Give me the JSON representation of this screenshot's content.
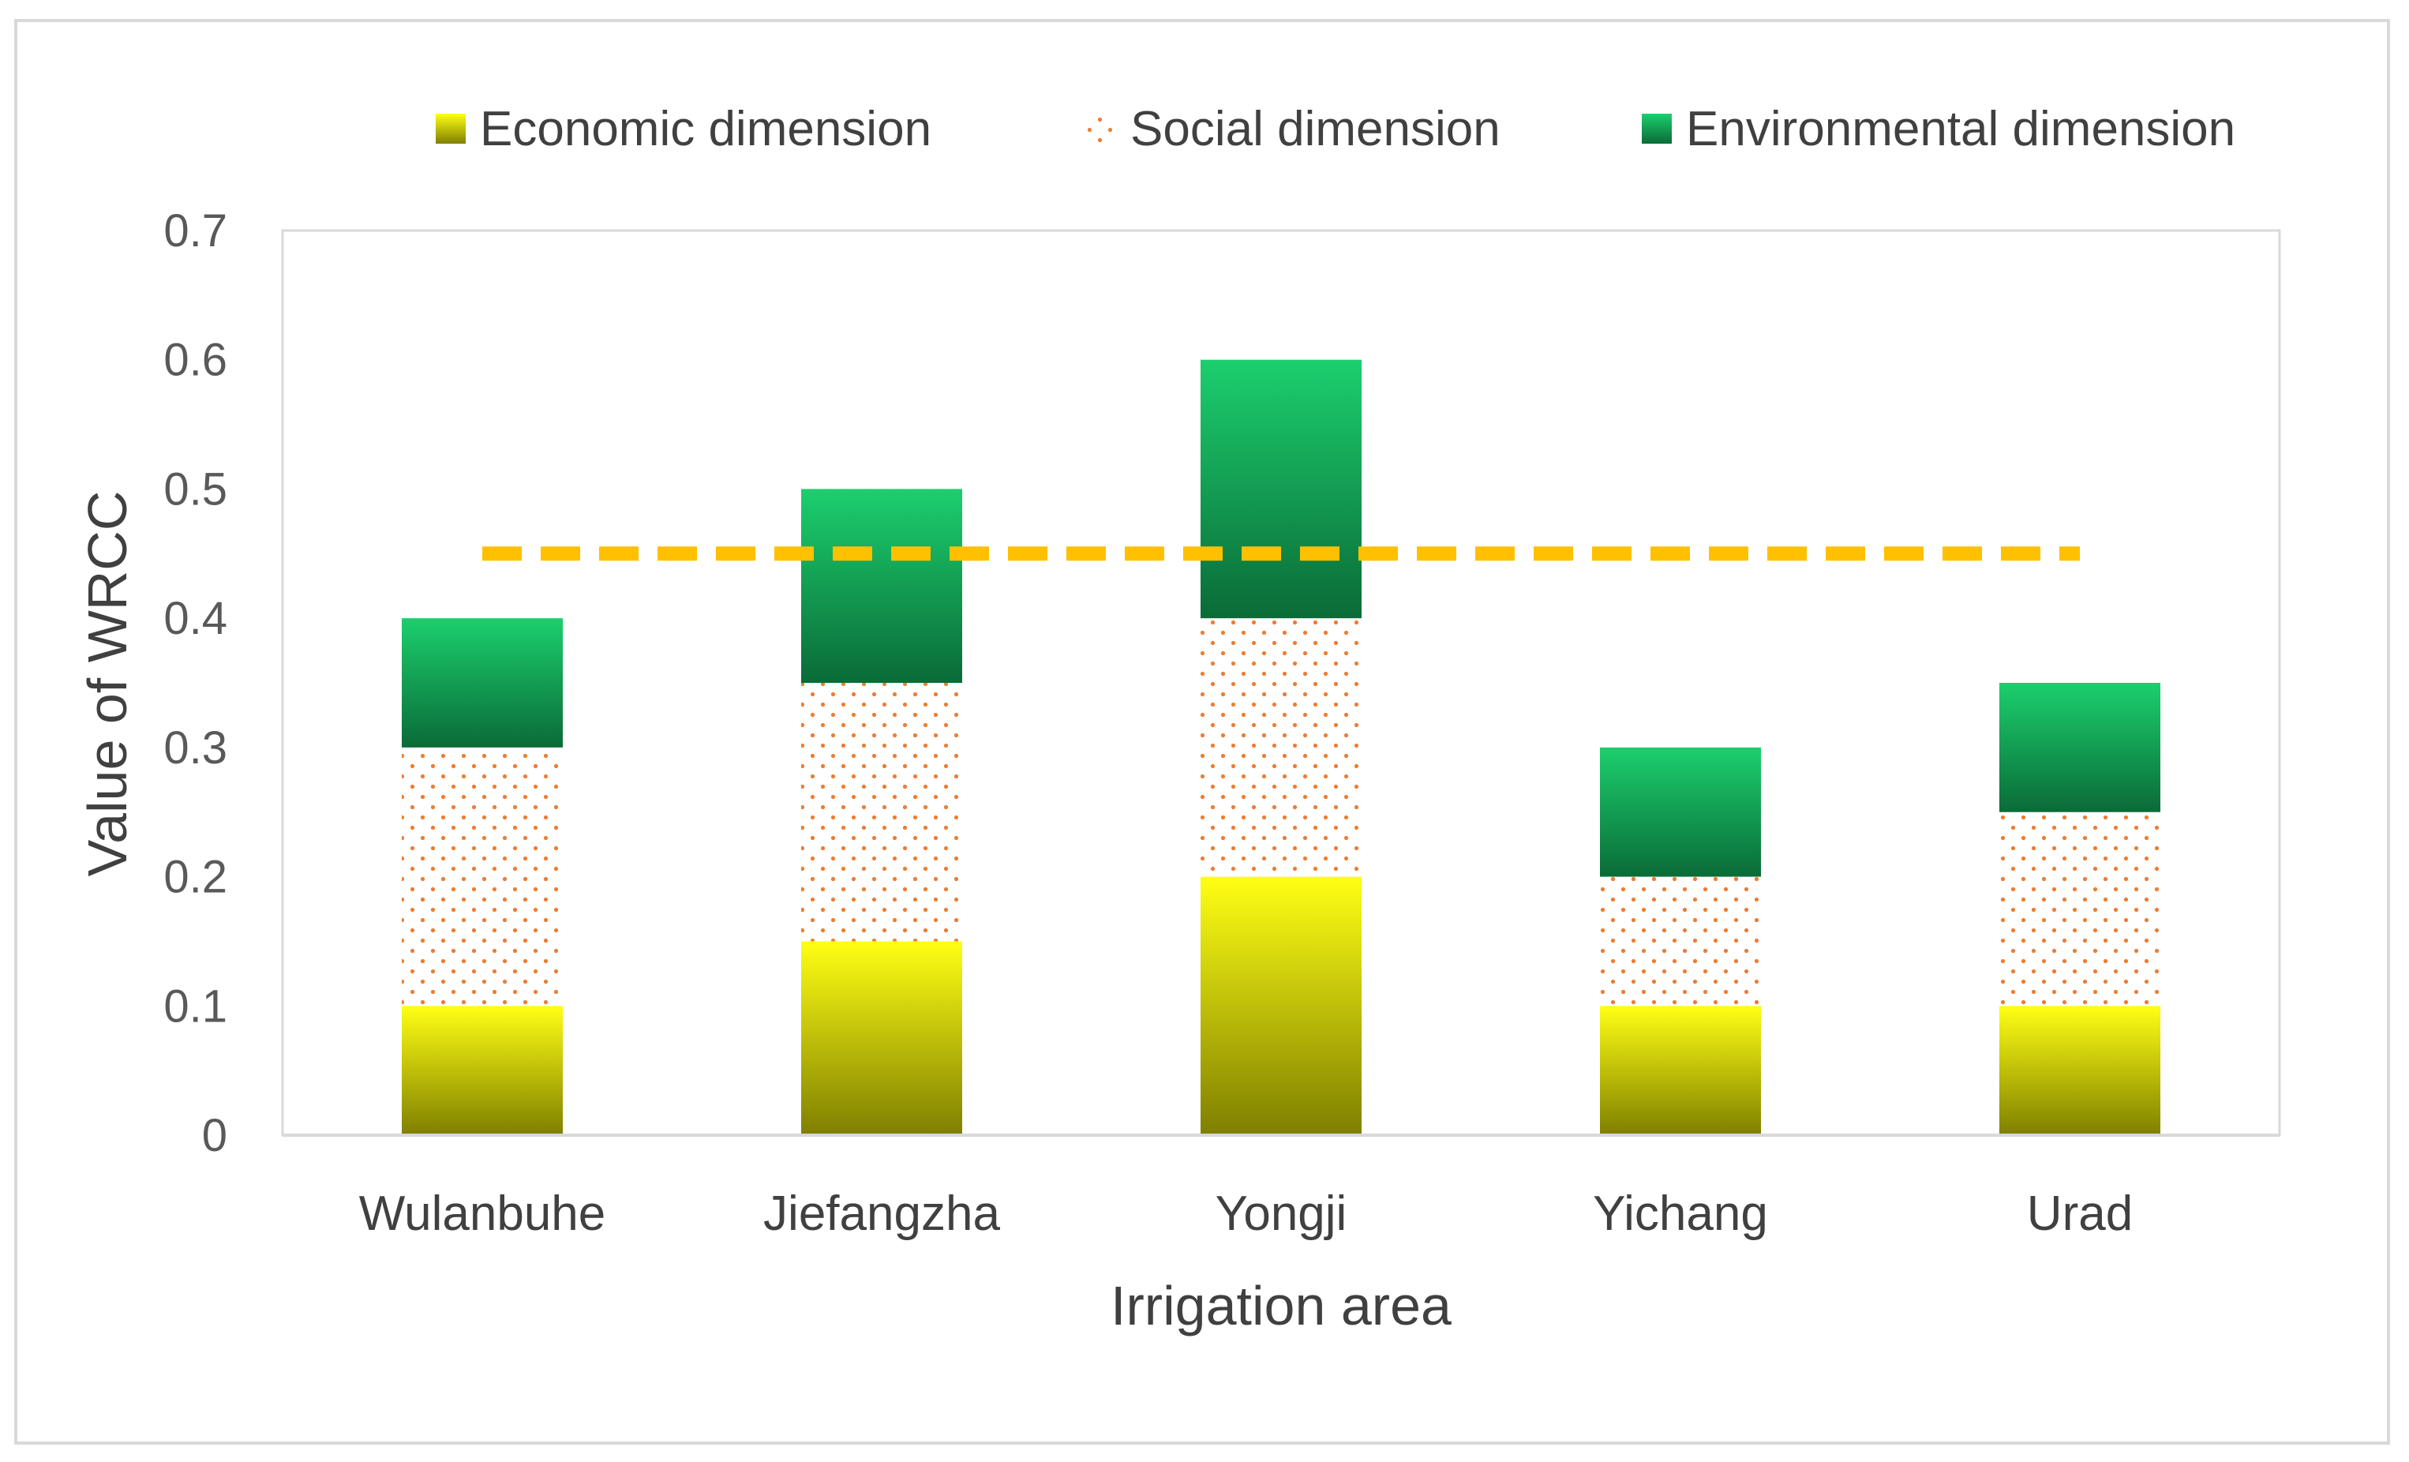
{
  "chart_data": {
    "type": "bar",
    "stacked": true,
    "title": "",
    "xlabel": "Irrigation area",
    "ylabel": "Value of WRCC",
    "ylim": [
      0,
      0.7
    ],
    "yticks": [
      "0",
      "0.1",
      "0.2",
      "0.3",
      "0.4",
      "0.5",
      "0.6",
      "0.7"
    ],
    "grid": false,
    "legend_position": "top",
    "categories": [
      "Wulanbuhe",
      "Jiefangzha",
      "Yongji",
      "Yichang",
      "Urad"
    ],
    "series": [
      {
        "name": "Economic dimension",
        "values": [
          0.1,
          0.15,
          0.2,
          0.1,
          0.1
        ],
        "style": "gradient-yellow-olive",
        "colors": [
          "#ffff14",
          "#7f7f00"
        ]
      },
      {
        "name": "Social dimension",
        "values": [
          0.2,
          0.2,
          0.2,
          0.1,
          0.15
        ],
        "style": "dotted-orange",
        "colors": [
          "#ed7d31"
        ]
      },
      {
        "name": "Environmental dimension",
        "values": [
          0.1,
          0.15,
          0.2,
          0.1,
          0.1
        ],
        "style": "gradient-green",
        "colors": [
          "#1ccf6e",
          "#0a6b37"
        ]
      }
    ],
    "reference_line": {
      "value": 0.45,
      "style": "dashed",
      "color": "#ffc000"
    }
  }
}
